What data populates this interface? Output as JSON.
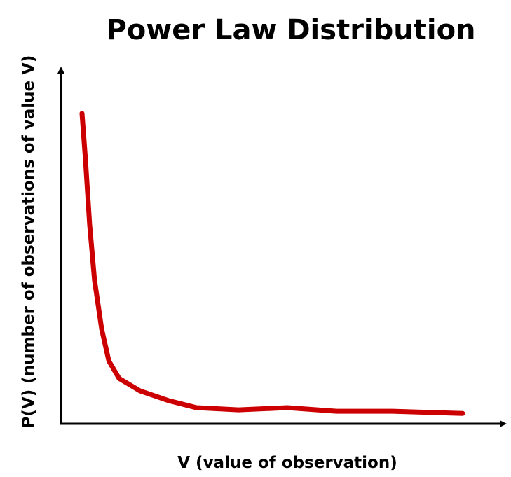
{
  "chart_data": {
    "type": "line",
    "title": "Power Law Distribution",
    "x_label": "V (value of observation)",
    "y_label": "P(V) (number of observations of value V)",
    "xlim": [
      0,
      100
    ],
    "ylim": [
      0,
      100
    ],
    "x": [
      4.7,
      5.5,
      6.4,
      7.5,
      9.1,
      10.7,
      13,
      17.7,
      24,
      30.3,
      39.7,
      50.6,
      61.6,
      74.1,
      89.8
    ],
    "series": [
      {
        "name": "P(V)",
        "color": "#cc0000",
        "values": [
          86.9,
          73.5,
          55.9,
          40.2,
          26.5,
          17.6,
          12.7,
          9.2,
          6.5,
          4.5,
          3.9,
          4.5,
          3.5,
          3.5,
          2.9
        ]
      }
    ]
  }
}
